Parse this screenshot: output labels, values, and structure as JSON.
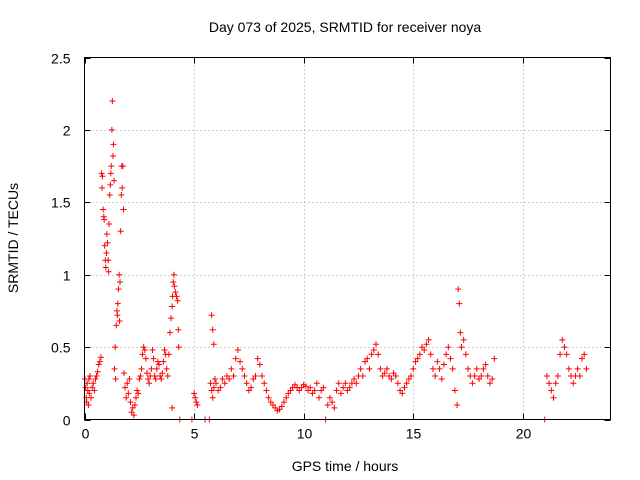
{
  "chart_data": {
    "type": "scatter",
    "title": "Day 073 of 2025, SRMTID for receiver noya",
    "xlabel": "GPS time / hours",
    "ylabel": "SRMTID / TECUs",
    "xlim": [
      0,
      24
    ],
    "ylim": [
      0,
      2.5
    ],
    "x_ticks": [
      0,
      5,
      10,
      15,
      20
    ],
    "x_tick_labels": [
      "0",
      "5",
      "10",
      "15",
      "20"
    ],
    "y_ticks": [
      0,
      0.5,
      1,
      1.5,
      2,
      2.5
    ],
    "y_tick_labels": [
      "0",
      "0.5",
      "1",
      "1.5",
      "2",
      "2.5"
    ],
    "grid": true,
    "marker": "plus",
    "color": "#ff0000",
    "series": [
      {
        "name": "noya",
        "points": [
          [
            0.02,
            0.28
          ],
          [
            0.05,
            0.22
          ],
          [
            0.08,
            0.15
          ],
          [
            0.1,
            0.12
          ],
          [
            0.12,
            0.25
          ],
          [
            0.15,
            0.2
          ],
          [
            0.18,
            0.1
          ],
          [
            0.2,
            0.28
          ],
          [
            0.22,
            0.18
          ],
          [
            0.25,
            0.3
          ],
          [
            0.3,
            0.15
          ],
          [
            0.35,
            0.22
          ],
          [
            0.4,
            0.25
          ],
          [
            0.45,
            0.2
          ],
          [
            0.5,
            0.28
          ],
          [
            0.55,
            0.3
          ],
          [
            0.6,
            0.33
          ],
          [
            0.65,
            0.38
          ],
          [
            0.7,
            0.4
          ],
          [
            0.75,
            0.43
          ],
          [
            0.78,
            1.7
          ],
          [
            0.8,
            1.6
          ],
          [
            0.82,
            1.68
          ],
          [
            0.85,
            1.45
          ],
          [
            0.88,
            1.4
          ],
          [
            0.9,
            1.38
          ],
          [
            0.92,
            1.2
          ],
          [
            0.95,
            1.1
          ],
          [
            0.97,
            1.05
          ],
          [
            1.0,
            1.15
          ],
          [
            1.02,
            1.28
          ],
          [
            1.05,
            1.22
          ],
          [
            1.08,
            1.1
          ],
          [
            1.1,
            1.02
          ],
          [
            1.12,
            1.35
          ],
          [
            1.15,
            1.55
          ],
          [
            1.18,
            1.62
          ],
          [
            1.2,
            1.7
          ],
          [
            1.22,
            1.75
          ],
          [
            1.25,
            2.0
          ],
          [
            1.27,
            2.2
          ],
          [
            1.3,
            1.82
          ],
          [
            1.32,
            1.9
          ],
          [
            1.35,
            1.65
          ],
          [
            1.37,
            0.35
          ],
          [
            1.4,
            0.5
          ],
          [
            1.42,
            0.28
          ],
          [
            1.45,
            0.65
          ],
          [
            1.48,
            0.75
          ],
          [
            1.5,
            0.72
          ],
          [
            1.52,
            0.8
          ],
          [
            1.55,
            0.9
          ],
          [
            1.58,
            1.0
          ],
          [
            1.6,
            0.68
          ],
          [
            1.62,
            0.95
          ],
          [
            1.65,
            1.3
          ],
          [
            1.68,
            1.55
          ],
          [
            1.7,
            1.75
          ],
          [
            1.72,
            1.6
          ],
          [
            1.75,
            1.75
          ],
          [
            1.78,
            1.45
          ],
          [
            1.8,
            0.32
          ],
          [
            1.85,
            0.22
          ],
          [
            1.9,
            0.15
          ],
          [
            1.95,
            0.25
          ],
          [
            2.0,
            0.18
          ],
          [
            2.05,
            0.28
          ],
          [
            2.1,
            0.12
          ],
          [
            2.15,
            0.05
          ],
          [
            2.2,
            0.08
          ],
          [
            2.25,
            0.03
          ],
          [
            2.3,
            0.1
          ],
          [
            2.35,
            0.15
          ],
          [
            2.4,
            0.2
          ],
          [
            2.45,
            0.18
          ],
          [
            2.5,
            0.28
          ],
          [
            2.55,
            0.3
          ],
          [
            2.6,
            0.35
          ],
          [
            2.65,
            0.45
          ],
          [
            2.7,
            0.5
          ],
          [
            2.75,
            0.48
          ],
          [
            2.8,
            0.42
          ],
          [
            2.85,
            0.32
          ],
          [
            2.9,
            0.28
          ],
          [
            2.95,
            0.25
          ],
          [
            3.0,
            0.3
          ],
          [
            3.05,
            0.35
          ],
          [
            3.1,
            0.48
          ],
          [
            3.15,
            0.42
          ],
          [
            3.2,
            0.3
          ],
          [
            3.25,
            0.28
          ],
          [
            3.3,
            0.35
          ],
          [
            3.35,
            0.4
          ],
          [
            3.4,
            0.38
          ],
          [
            3.45,
            0.3
          ],
          [
            3.5,
            0.28
          ],
          [
            3.55,
            0.32
          ],
          [
            3.6,
            0.4
          ],
          [
            3.65,
            0.48
          ],
          [
            3.7,
            0.45
          ],
          [
            3.75,
            0.35
          ],
          [
            3.8,
            0.3
          ],
          [
            3.85,
            0.45
          ],
          [
            3.9,
            0.6
          ],
          [
            3.95,
            0.7
          ],
          [
            4.0,
            0.78
          ],
          [
            4.02,
            0.85
          ],
          [
            4.05,
            0.95
          ],
          [
            4.08,
            1.0
          ],
          [
            4.1,
            0.92
          ],
          [
            4.15,
            0.88
          ],
          [
            4.2,
            0.85
          ],
          [
            4.25,
            0.82
          ],
          [
            4.28,
            0.62
          ],
          [
            4.3,
            0.5
          ],
          [
            4.0,
            0.08
          ],
          [
            4.35,
            0.0
          ],
          [
            4.9,
            0.0
          ],
          [
            5.0,
            0.18
          ],
          [
            5.05,
            0.15
          ],
          [
            5.1,
            0.12
          ],
          [
            5.15,
            0.1
          ],
          [
            5.5,
            0.0
          ],
          [
            5.7,
            0.0
          ],
          [
            5.8,
            0.72
          ],
          [
            5.85,
            0.62
          ],
          [
            5.9,
            0.52
          ],
          [
            5.75,
            0.25
          ],
          [
            5.8,
            0.2
          ],
          [
            5.85,
            0.15
          ],
          [
            5.9,
            0.22
          ],
          [
            5.95,
            0.28
          ],
          [
            6.0,
            0.25
          ],
          [
            6.1,
            0.2
          ],
          [
            6.2,
            0.22
          ],
          [
            6.3,
            0.28
          ],
          [
            6.4,
            0.25
          ],
          [
            6.5,
            0.3
          ],
          [
            6.6,
            0.28
          ],
          [
            6.7,
            0.35
          ],
          [
            6.8,
            0.3
          ],
          [
            6.9,
            0.42
          ],
          [
            7.0,
            0.48
          ],
          [
            7.1,
            0.4
          ],
          [
            7.2,
            0.35
          ],
          [
            7.3,
            0.3
          ],
          [
            7.4,
            0.25
          ],
          [
            7.5,
            0.2
          ],
          [
            7.6,
            0.22
          ],
          [
            7.7,
            0.28
          ],
          [
            7.8,
            0.3
          ],
          [
            7.9,
            0.42
          ],
          [
            8.0,
            0.38
          ],
          [
            8.1,
            0.3
          ],
          [
            8.2,
            0.25
          ],
          [
            8.3,
            0.2
          ],
          [
            8.4,
            0.15
          ],
          [
            8.5,
            0.12
          ],
          [
            8.6,
            0.1
          ],
          [
            8.7,
            0.08
          ],
          [
            8.8,
            0.06
          ],
          [
            8.9,
            0.07
          ],
          [
            9.0,
            0.09
          ],
          [
            9.1,
            0.12
          ],
          [
            9.2,
            0.15
          ],
          [
            9.3,
            0.18
          ],
          [
            9.4,
            0.2
          ],
          [
            9.5,
            0.22
          ],
          [
            9.6,
            0.24
          ],
          [
            9.7,
            0.22
          ],
          [
            9.8,
            0.2
          ],
          [
            9.9,
            0.22
          ],
          [
            10.0,
            0.24
          ],
          [
            10.1,
            0.23
          ],
          [
            10.2,
            0.2
          ],
          [
            10.3,
            0.22
          ],
          [
            10.4,
            0.18
          ],
          [
            10.5,
            0.2
          ],
          [
            10.6,
            0.25
          ],
          [
            10.7,
            0.15
          ],
          [
            10.8,
            0.2
          ],
          [
            10.9,
            0.22
          ],
          [
            11.0,
            0.0
          ],
          [
            11.1,
            0.1
          ],
          [
            11.2,
            0.15
          ],
          [
            11.3,
            0.12
          ],
          [
            11.4,
            0.08
          ],
          [
            11.5,
            0.2
          ],
          [
            11.6,
            0.25
          ],
          [
            11.7,
            0.18
          ],
          [
            11.8,
            0.22
          ],
          [
            11.9,
            0.25
          ],
          [
            12.0,
            0.2
          ],
          [
            12.1,
            0.22
          ],
          [
            12.2,
            0.25
          ],
          [
            12.3,
            0.28
          ],
          [
            12.4,
            0.25
          ],
          [
            12.5,
            0.3
          ],
          [
            12.6,
            0.35
          ],
          [
            12.7,
            0.3
          ],
          [
            12.8,
            0.4
          ],
          [
            12.9,
            0.42
          ],
          [
            13.0,
            0.35
          ],
          [
            13.1,
            0.45
          ],
          [
            13.2,
            0.48
          ],
          [
            13.3,
            0.52
          ],
          [
            13.4,
            0.45
          ],
          [
            13.5,
            0.35
          ],
          [
            13.6,
            0.3
          ],
          [
            13.7,
            0.32
          ],
          [
            13.8,
            0.35
          ],
          [
            13.9,
            0.3
          ],
          [
            14.0,
            0.28
          ],
          [
            14.1,
            0.32
          ],
          [
            14.2,
            0.3
          ],
          [
            14.3,
            0.25
          ],
          [
            14.4,
            0.2
          ],
          [
            14.5,
            0.18
          ],
          [
            14.6,
            0.22
          ],
          [
            14.7,
            0.25
          ],
          [
            14.8,
            0.28
          ],
          [
            14.9,
            0.3
          ],
          [
            15.0,
            0.35
          ],
          [
            15.1,
            0.4
          ],
          [
            15.2,
            0.42
          ],
          [
            15.3,
            0.45
          ],
          [
            15.4,
            0.5
          ],
          [
            15.5,
            0.48
          ],
          [
            15.6,
            0.52
          ],
          [
            15.7,
            0.55
          ],
          [
            15.8,
            0.45
          ],
          [
            15.9,
            0.35
          ],
          [
            16.0,
            0.3
          ],
          [
            16.1,
            0.4
          ],
          [
            16.2,
            0.35
          ],
          [
            16.3,
            0.28
          ],
          [
            16.4,
            0.38
          ],
          [
            16.5,
            0.45
          ],
          [
            16.6,
            0.5
          ],
          [
            16.7,
            0.42
          ],
          [
            16.8,
            0.35
          ],
          [
            16.9,
            0.2
          ],
          [
            17.0,
            0.1
          ],
          [
            17.05,
            0.9
          ],
          [
            17.1,
            0.8
          ],
          [
            17.15,
            0.6
          ],
          [
            17.2,
            0.5
          ],
          [
            17.3,
            0.55
          ],
          [
            17.4,
            0.45
          ],
          [
            17.5,
            0.35
          ],
          [
            17.6,
            0.3
          ],
          [
            17.7,
            0.25
          ],
          [
            17.8,
            0.3
          ],
          [
            17.9,
            0.35
          ],
          [
            18.0,
            0.28
          ],
          [
            18.1,
            0.3
          ],
          [
            18.2,
            0.35
          ],
          [
            18.3,
            0.38
          ],
          [
            18.4,
            0.3
          ],
          [
            18.5,
            0.25
          ],
          [
            18.6,
            0.28
          ],
          [
            18.7,
            0.42
          ],
          [
            21.0,
            0.0
          ],
          [
            21.1,
            0.3
          ],
          [
            21.2,
            0.25
          ],
          [
            21.3,
            0.2
          ],
          [
            21.4,
            0.15
          ],
          [
            21.5,
            0.25
          ],
          [
            21.6,
            0.3
          ],
          [
            21.7,
            0.45
          ],
          [
            21.8,
            0.55
          ],
          [
            21.9,
            0.5
          ],
          [
            22.0,
            0.45
          ],
          [
            22.1,
            0.35
          ],
          [
            22.2,
            0.3
          ],
          [
            22.3,
            0.25
          ],
          [
            22.4,
            0.3
          ],
          [
            22.5,
            0.35
          ],
          [
            22.6,
            0.3
          ],
          [
            22.7,
            0.42
          ],
          [
            22.8,
            0.45
          ],
          [
            22.9,
            0.35
          ]
        ]
      }
    ]
  }
}
